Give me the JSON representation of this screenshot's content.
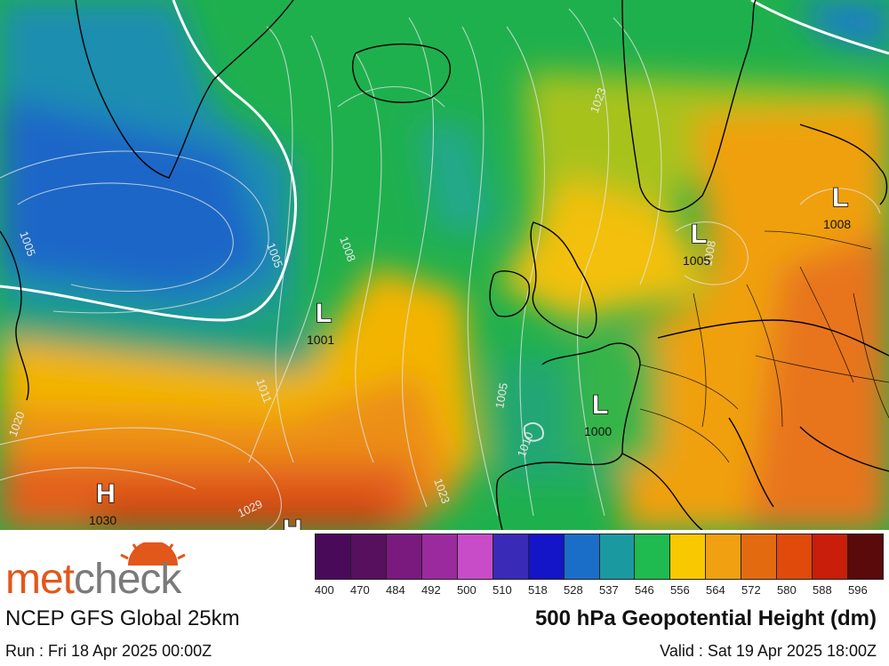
{
  "map": {
    "pressure_systems": [
      {
        "type": "L",
        "value": "1001"
      },
      {
        "type": "L",
        "value": "1000"
      },
      {
        "type": "L",
        "value": "1005"
      },
      {
        "type": "L",
        "value": "1008"
      },
      {
        "type": "H",
        "value": "1030"
      },
      {
        "type": "H",
        "value": ""
      }
    ],
    "isobar_labels": [
      "1005",
      "1005",
      "1008",
      "1011",
      "1020",
      "1029",
      "1023",
      "1023",
      "1005",
      "1010",
      "1008"
    ]
  },
  "legend": {
    "colors": [
      "#4a0a5a",
      "#57105e",
      "#7a1a7e",
      "#9b2a9e",
      "#c84cc8",
      "#3a2ab8",
      "#1414c8",
      "#1a6ec8",
      "#1a9aa0",
      "#1fba50",
      "#f8c800",
      "#f0a010",
      "#e46a10",
      "#e04a0a",
      "#c81e0a",
      "#5a0a0a"
    ],
    "values": [
      "400",
      "470",
      "484",
      "492",
      "500",
      "510",
      "518",
      "528",
      "537",
      "546",
      "556",
      "564",
      "572",
      "580",
      "588",
      "596"
    ]
  },
  "brand": {
    "met": "met",
    "check": "check"
  },
  "model_name": "NCEP GFS Global 25km",
  "parameter": "500 hPa Geopotential Height (dm)",
  "run": "Run : Fri 18 Apr 2025 00:00Z",
  "valid": "Valid : Sat 19 Apr 2025 18:00Z"
}
